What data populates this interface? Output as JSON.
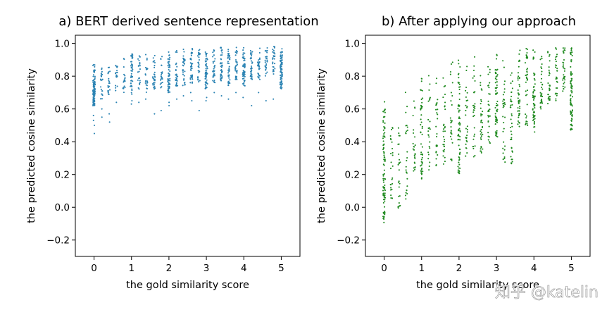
{
  "watermark": "知乎 @katelin",
  "chart_data": [
    {
      "type": "scatter",
      "title": "a) BERT derived sentence representation",
      "xlabel": "the gold similarity score",
      "ylabel": "the predicted cosine similarity",
      "xlim": [
        -0.5,
        5.5
      ],
      "ylim": [
        -0.3,
        1.05
      ],
      "xticks": [
        0,
        1,
        2,
        3,
        4,
        5
      ],
      "xtick_labels": [
        "0",
        "1",
        "2",
        "3",
        "4",
        "5"
      ],
      "yticks": [
        -0.2,
        0.0,
        0.2,
        0.4,
        0.6,
        0.8,
        1.0
      ],
      "ytick_labels": [
        "−0.2",
        "0.0",
        "0.2",
        "0.4",
        "0.6",
        "0.8",
        "1.0"
      ],
      "grid": false,
      "color": "#2b83b3",
      "columns": [
        {
          "x": 0.0,
          "range": [
            0.62,
            0.88
          ],
          "n": 90,
          "outliers": [
            0.45,
            0.5,
            0.53,
            0.56
          ]
        },
        {
          "x": 0.2,
          "range": [
            0.66,
            0.9
          ],
          "n": 22,
          "outliers": [
            0.55,
            0.6
          ]
        },
        {
          "x": 0.4,
          "range": [
            0.68,
            0.92
          ],
          "n": 22,
          "outliers": [
            0.52,
            0.57
          ]
        },
        {
          "x": 0.6,
          "range": [
            0.7,
            0.92
          ],
          "n": 18,
          "outliers": [
            0.64
          ]
        },
        {
          "x": 0.8,
          "range": [
            0.7,
            0.93
          ],
          "n": 18,
          "outliers": []
        },
        {
          "x": 1.0,
          "range": [
            0.68,
            0.94
          ],
          "n": 45,
          "outliers": [
            0.63,
            0.65
          ]
        },
        {
          "x": 1.2,
          "range": [
            0.72,
            0.95
          ],
          "n": 22,
          "outliers": [
            0.64
          ]
        },
        {
          "x": 1.4,
          "range": [
            0.7,
            0.95
          ],
          "n": 22,
          "outliers": [
            0.66
          ]
        },
        {
          "x": 1.6,
          "range": [
            0.72,
            0.95
          ],
          "n": 30,
          "outliers": [
            0.57
          ]
        },
        {
          "x": 1.8,
          "range": [
            0.72,
            0.96
          ],
          "n": 22,
          "outliers": [
            0.59
          ]
        },
        {
          "x": 2.0,
          "range": [
            0.7,
            0.96
          ],
          "n": 60,
          "outliers": [
            0.62,
            0.64
          ]
        },
        {
          "x": 2.2,
          "range": [
            0.74,
            0.96
          ],
          "n": 28,
          "outliers": [
            0.66
          ]
        },
        {
          "x": 2.4,
          "range": [
            0.74,
            0.97
          ],
          "n": 30,
          "outliers": [
            0.68
          ]
        },
        {
          "x": 2.6,
          "range": [
            0.75,
            0.97
          ],
          "n": 40,
          "outliers": [
            0.65,
            0.7
          ]
        },
        {
          "x": 2.8,
          "range": [
            0.76,
            0.97
          ],
          "n": 30,
          "outliers": [
            0.59
          ]
        },
        {
          "x": 3.0,
          "range": [
            0.72,
            0.97
          ],
          "n": 55,
          "outliers": [
            0.65,
            0.67
          ]
        },
        {
          "x": 3.2,
          "range": [
            0.76,
            0.98
          ],
          "n": 32,
          "outliers": [
            0.7
          ]
        },
        {
          "x": 3.4,
          "range": [
            0.76,
            0.98
          ],
          "n": 38,
          "outliers": [
            0.68
          ]
        },
        {
          "x": 3.6,
          "range": [
            0.74,
            0.98
          ],
          "n": 42,
          "outliers": [
            0.66
          ]
        },
        {
          "x": 3.8,
          "range": [
            0.78,
            0.98
          ],
          "n": 38,
          "outliers": [
            0.7
          ]
        },
        {
          "x": 4.0,
          "range": [
            0.74,
            0.98
          ],
          "n": 55,
          "outliers": [
            0.67
          ]
        },
        {
          "x": 4.2,
          "range": [
            0.78,
            0.98
          ],
          "n": 32,
          "outliers": [
            0.62
          ]
        },
        {
          "x": 4.4,
          "range": [
            0.78,
            0.98
          ],
          "n": 30,
          "outliers": [
            0.7
          ]
        },
        {
          "x": 4.6,
          "range": [
            0.8,
            0.98
          ],
          "n": 28,
          "outliers": [
            0.65
          ]
        },
        {
          "x": 4.8,
          "range": [
            0.8,
            0.99
          ],
          "n": 30,
          "outliers": [
            0.66
          ]
        },
        {
          "x": 5.0,
          "range": [
            0.72,
            0.99
          ],
          "n": 80,
          "outliers": []
        }
      ]
    },
    {
      "type": "scatter",
      "title": "b) After applying our approach",
      "xlabel": "the gold similarity score",
      "ylabel": "the predicted cosine similarity",
      "xlim": [
        -0.5,
        5.5
      ],
      "ylim": [
        -0.3,
        1.05
      ],
      "xticks": [
        0,
        1,
        2,
        3,
        4,
        5
      ],
      "xtick_labels": [
        "0",
        "1",
        "2",
        "3",
        "4",
        "5"
      ],
      "yticks": [
        -0.2,
        0.0,
        0.2,
        0.4,
        0.6,
        0.8,
        1.0
      ],
      "ytick_labels": [
        "−0.2",
        "0.0",
        "0.2",
        "0.4",
        "0.6",
        "0.8",
        "1.0"
      ],
      "grid": false,
      "color": "#1f8a1f",
      "columns": [
        {
          "x": 0.0,
          "range": [
            -0.1,
            0.7
          ],
          "n": 90,
          "outliers": []
        },
        {
          "x": 0.2,
          "range": [
            -0.02,
            0.55
          ],
          "n": 25,
          "outliers": []
        },
        {
          "x": 0.4,
          "range": [
            -0.04,
            0.55
          ],
          "n": 25,
          "outliers": []
        },
        {
          "x": 0.6,
          "range": [
            0.05,
            0.72
          ],
          "n": 25,
          "outliers": []
        },
        {
          "x": 0.8,
          "range": [
            0.12,
            0.74
          ],
          "n": 25,
          "outliers": []
        },
        {
          "x": 1.0,
          "range": [
            0.17,
            0.87
          ],
          "n": 50,
          "outliers": []
        },
        {
          "x": 1.2,
          "range": [
            0.2,
            0.85
          ],
          "n": 25,
          "outliers": []
        },
        {
          "x": 1.4,
          "range": [
            0.25,
            0.85
          ],
          "n": 25,
          "outliers": []
        },
        {
          "x": 1.6,
          "range": [
            0.26,
            0.88
          ],
          "n": 30,
          "outliers": []
        },
        {
          "x": 1.8,
          "range": [
            0.28,
            0.9
          ],
          "n": 25,
          "outliers": []
        },
        {
          "x": 2.0,
          "range": [
            0.2,
            0.92
          ],
          "n": 65,
          "outliers": []
        },
        {
          "x": 2.2,
          "range": [
            0.3,
            0.9
          ],
          "n": 28,
          "outliers": []
        },
        {
          "x": 2.4,
          "range": [
            0.3,
            0.92
          ],
          "n": 30,
          "outliers": []
        },
        {
          "x": 2.6,
          "range": [
            0.33,
            0.92
          ],
          "n": 35,
          "outliers": []
        },
        {
          "x": 2.8,
          "range": [
            0.38,
            0.94
          ],
          "n": 30,
          "outliers": []
        },
        {
          "x": 3.0,
          "range": [
            0.4,
            0.95
          ],
          "n": 60,
          "outliers": []
        },
        {
          "x": 3.2,
          "range": [
            0.27,
            0.95
          ],
          "n": 32,
          "outliers": []
        },
        {
          "x": 3.4,
          "range": [
            0.25,
            0.96
          ],
          "n": 38,
          "outliers": []
        },
        {
          "x": 3.6,
          "range": [
            0.48,
            0.96
          ],
          "n": 42,
          "outliers": []
        },
        {
          "x": 3.8,
          "range": [
            0.5,
            0.97
          ],
          "n": 38,
          "outliers": []
        },
        {
          "x": 4.0,
          "range": [
            0.45,
            0.97
          ],
          "n": 55,
          "outliers": []
        },
        {
          "x": 4.2,
          "range": [
            0.6,
            0.97
          ],
          "n": 32,
          "outliers": []
        },
        {
          "x": 4.4,
          "range": [
            0.62,
            0.98
          ],
          "n": 30,
          "outliers": []
        },
        {
          "x": 4.6,
          "range": [
            0.65,
            0.98
          ],
          "n": 28,
          "outliers": []
        },
        {
          "x": 4.8,
          "range": [
            0.68,
            0.99
          ],
          "n": 30,
          "outliers": []
        },
        {
          "x": 5.0,
          "range": [
            0.47,
            0.99
          ],
          "n": 80,
          "outliers": []
        }
      ]
    }
  ]
}
